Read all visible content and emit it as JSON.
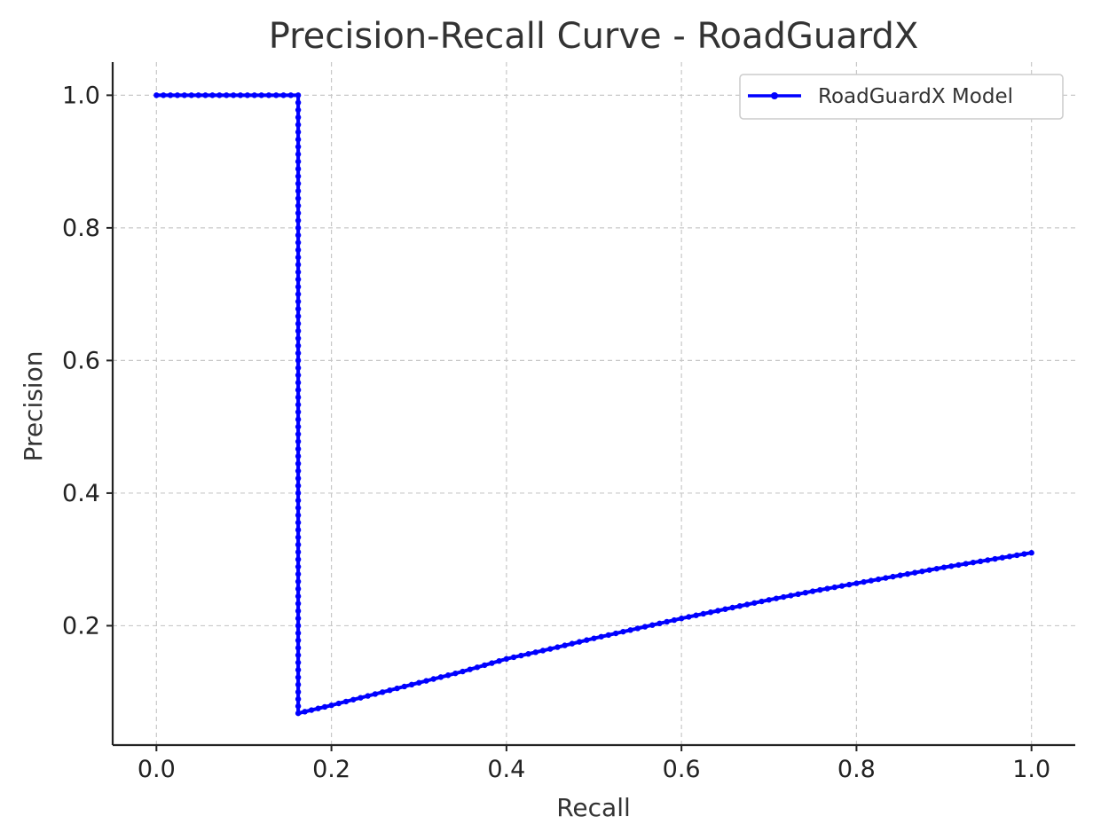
{
  "chart_data": {
    "type": "line",
    "title": "Precision-Recall Curve - RoadGuardX",
    "xlabel": "Recall",
    "ylabel": "Precision",
    "xlim": [
      -0.05,
      1.05
    ],
    "ylim": [
      0.02,
      1.05
    ],
    "xticks": [
      0.0,
      0.2,
      0.4,
      0.6,
      0.8,
      1.0
    ],
    "xtick_labels": [
      "0.0",
      "0.2",
      "0.4",
      "0.6",
      "0.8",
      "1.0"
    ],
    "yticks": [
      0.2,
      0.4,
      0.6,
      0.8,
      1.0
    ],
    "ytick_labels": [
      "0.2",
      "0.4",
      "0.6",
      "0.8",
      "1.0"
    ],
    "grid": true,
    "legend_position": "top-right",
    "series": [
      {
        "name": "RoadGuardX Model",
        "color": "#0000ff",
        "marker": "dot",
        "points": [
          [
            0.0,
            1.0
          ],
          [
            0.04,
            1.0
          ],
          [
            0.08,
            1.0
          ],
          [
            0.12,
            1.0
          ],
          [
            0.162,
            1.0
          ],
          [
            0.162,
            0.9
          ],
          [
            0.162,
            0.8
          ],
          [
            0.162,
            0.7
          ],
          [
            0.162,
            0.6
          ],
          [
            0.162,
            0.5
          ],
          [
            0.162,
            0.4
          ],
          [
            0.162,
            0.3
          ],
          [
            0.162,
            0.2
          ],
          [
            0.162,
            0.1
          ],
          [
            0.162,
            0.068
          ],
          [
            0.2,
            0.08
          ],
          [
            0.25,
            0.097
          ],
          [
            0.3,
            0.114
          ],
          [
            0.35,
            0.131
          ],
          [
            0.4,
            0.15
          ],
          [
            0.45,
            0.165
          ],
          [
            0.5,
            0.181
          ],
          [
            0.55,
            0.196
          ],
          [
            0.6,
            0.211
          ],
          [
            0.65,
            0.225
          ],
          [
            0.7,
            0.239
          ],
          [
            0.75,
            0.252
          ],
          [
            0.8,
            0.264
          ],
          [
            0.85,
            0.276
          ],
          [
            0.9,
            0.288
          ],
          [
            0.95,
            0.299
          ],
          [
            1.0,
            0.31
          ]
        ]
      }
    ]
  }
}
